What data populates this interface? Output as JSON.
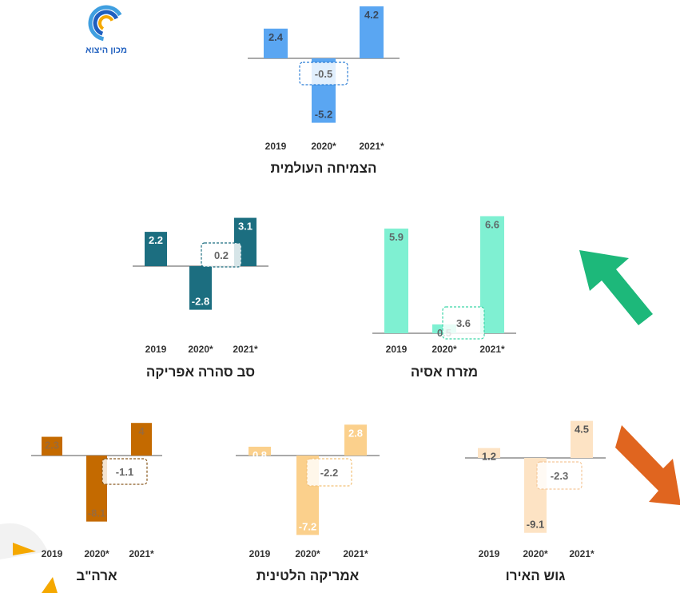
{
  "logo": {
    "caption": "מכון היצוא",
    "colors": [
      "#f5a800",
      "#1f5fbf",
      "#3f9fe0"
    ]
  },
  "chart_data": [
    {
      "type": "bar",
      "title": "הצמיחה העולמית",
      "categories": [
        "2019",
        "2020*",
        "2021*"
      ],
      "values": [
        2.4,
        -5.2,
        4.2
      ],
      "highlight_value": -0.5,
      "bar_color": "#5aa6f2",
      "label_color": "#3a4a5e",
      "box_color": "#2f7fd6"
    },
    {
      "type": "bar",
      "title": "סב סהרה אפריקה",
      "categories": [
        "2019",
        "2020*",
        "2021*"
      ],
      "values": [
        2.2,
        -2.8,
        3.1
      ],
      "highlight_value": 0.2,
      "bar_color": "#1c6e80",
      "label_color": "#ffffff",
      "box_color": "#1c6e80"
    },
    {
      "type": "bar",
      "title": "מזרח אסיה",
      "categories": [
        "2019",
        "2020*",
        "2021*"
      ],
      "values": [
        5.9,
        0.5,
        6.6
      ],
      "highlight_value": 3.6,
      "bar_color": "#7ff0d2",
      "label_color": "#5f6b6b",
      "box_color": "#3ed6a8"
    },
    {
      "type": "bar",
      "title": "ארה\"ב",
      "categories": [
        "2019",
        "2020*",
        "2021*"
      ],
      "values": [
        2.3,
        -8.1,
        4
      ],
      "highlight_value": -1.1,
      "bar_color": "#c46a00",
      "label_color": "#9a6a3a",
      "box_color": "#8a5a20"
    },
    {
      "type": "bar",
      "title": "אמריקה הלטינית",
      "categories": [
        "2019",
        "2020*",
        "2021*"
      ],
      "values": [
        0.8,
        -7.2,
        2.8
      ],
      "highlight_value": -2.2,
      "bar_color": "#fbd08c",
      "label_color": "#ffffff",
      "box_color": "#f2c27a"
    },
    {
      "type": "bar",
      "title": "גוש האירו",
      "categories": [
        "2019",
        "2020*",
        "2021*"
      ],
      "values": [
        1.2,
        -9.1,
        4.5
      ],
      "highlight_value": -2.3,
      "bar_color": "#fde3c4",
      "label_color": "#555555",
      "box_color": "#f5c89a"
    }
  ],
  "arrows": [
    {
      "name": "green-up-arrow-icon",
      "color": "#1db87a"
    },
    {
      "name": "orange-down-arrow-icon",
      "color": "#e0651f"
    }
  ]
}
